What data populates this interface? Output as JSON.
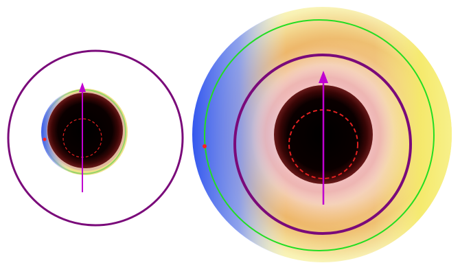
{
  "panels": [
    {
      "name": "left-panel",
      "colors": {
        "outer_ring": "#7a0a7a",
        "arrow": "#c000d0",
        "dashed_ring": "#e02020",
        "core": "#000000",
        "shadow": "#3a0808",
        "marker": "#ff2020"
      }
    },
    {
      "name": "right-panel",
      "colors": {
        "outer_ring": "#7a0a7a",
        "inner_ring": "#7a0a7a",
        "green_ring": "#22dd22",
        "arrow": "#c000d0",
        "dashed_ring": "#e02020",
        "core": "#000000",
        "shadow": "#4a0c0c",
        "glow_blue": "#3355ee",
        "glow_yellow": "#f6ef7a",
        "glow_orange": "#e8a040",
        "glow_pink": "#f0b8b8",
        "marker": "#ff2020"
      }
    }
  ],
  "legend_visible": false,
  "text_labels": []
}
